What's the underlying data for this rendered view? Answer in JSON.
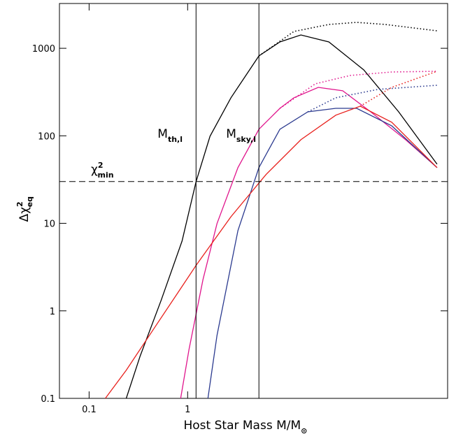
{
  "chart_data": {
    "type": "line",
    "x_label": {
      "text": "Host Star Mass M/M",
      "sub": "⊙"
    },
    "y_label": {
      "text": "Δχ",
      "sup": "2",
      "sub": "eq"
    },
    "log_x": true,
    "log_y": true,
    "xlim": [
      0.05,
      435
    ],
    "ylim": [
      0.1,
      3250
    ],
    "xticks": [
      0.1,
      1
    ],
    "yticks": [
      0.1,
      1,
      10,
      100,
      1000
    ],
    "series": [
      {
        "color": "#000000",
        "style": "solid",
        "x": [
          0.238,
          0.329,
          0.538,
          0.877,
          1.217,
          1.687,
          2.75,
          5.29,
          8.63,
          14.1,
          27.1,
          61.3,
          138.6,
          340
        ],
        "values": [
          0.1,
          0.303,
          1.32,
          6.28,
          29.9,
          98.9,
          272,
          819,
          1183,
          1420,
          1183,
          567,
          188,
          47.4
        ]
      },
      {
        "color": "#000000",
        "style": "dotted",
        "x": [
          5.29,
          12.0,
          27.1,
          52,
          101,
          340
        ],
        "values": [
          819,
          1557,
          1873,
          1978,
          1873,
          1585
        ]
      },
      {
        "color": "#e0158c",
        "style": "solid",
        "x": [
          0.849,
          1.033,
          1.432,
          1.986,
          3.24,
          5.29,
          8.63,
          11.97,
          21.2,
          37.5,
          72.1,
          163,
          340
        ],
        "values": [
          0.1,
          0.364,
          2.29,
          9.95,
          43.3,
          119,
          206,
          272,
          358,
          327,
          188,
          90.2,
          43.3
        ]
      },
      {
        "color": "#e0158c",
        "style": "dotted",
        "x": [
          8.63,
          19.7,
          44.5,
          117.8,
          340
        ],
        "values": [
          206,
          392,
          489,
          536,
          546
        ]
      },
      {
        "color": "#2b3a8f",
        "style": "solid",
        "x": [
          1.607,
          1.986,
          3.24,
          5.29,
          8.63,
          16.6,
          31.9,
          52,
          117.8,
          340
        ],
        "values": [
          0.1,
          0.526,
          8.27,
          43.3,
          119,
          188,
          206,
          206,
          130,
          43.3
        ]
      },
      {
        "color": "#2b3a8f",
        "style": "dotted",
        "x": [
          16.6,
          31.9,
          85.5,
          340
        ],
        "values": [
          188,
          272,
          339,
          378
        ]
      },
      {
        "color": "#e8201c",
        "style": "solid",
        "x": [
          0.146,
          0.238,
          0.457,
          1.217,
          2.75,
          6.23,
          14.1,
          31.9,
          56.5,
          117.8,
          340
        ],
        "values": [
          0.1,
          0.21,
          0.632,
          3.3,
          11.9,
          36,
          90.2,
          172,
          218,
          143,
          43.3
        ]
      },
      {
        "color": "#e8201c",
        "style": "dotted",
        "x": [
          56.5,
          117.8,
          340
        ],
        "values": [
          218,
          358,
          546
        ]
      }
    ],
    "vlines": [
      {
        "x": 1.217,
        "label": {
          "text": "M",
          "sub": "th,l"
        }
      },
      {
        "x": 5.29,
        "label": {
          "text": "M",
          "sub": "sky,l"
        }
      }
    ],
    "hline": {
      "y": 30,
      "label": {
        "text": "χ",
        "sup": "2",
        "sub": "min"
      }
    }
  }
}
